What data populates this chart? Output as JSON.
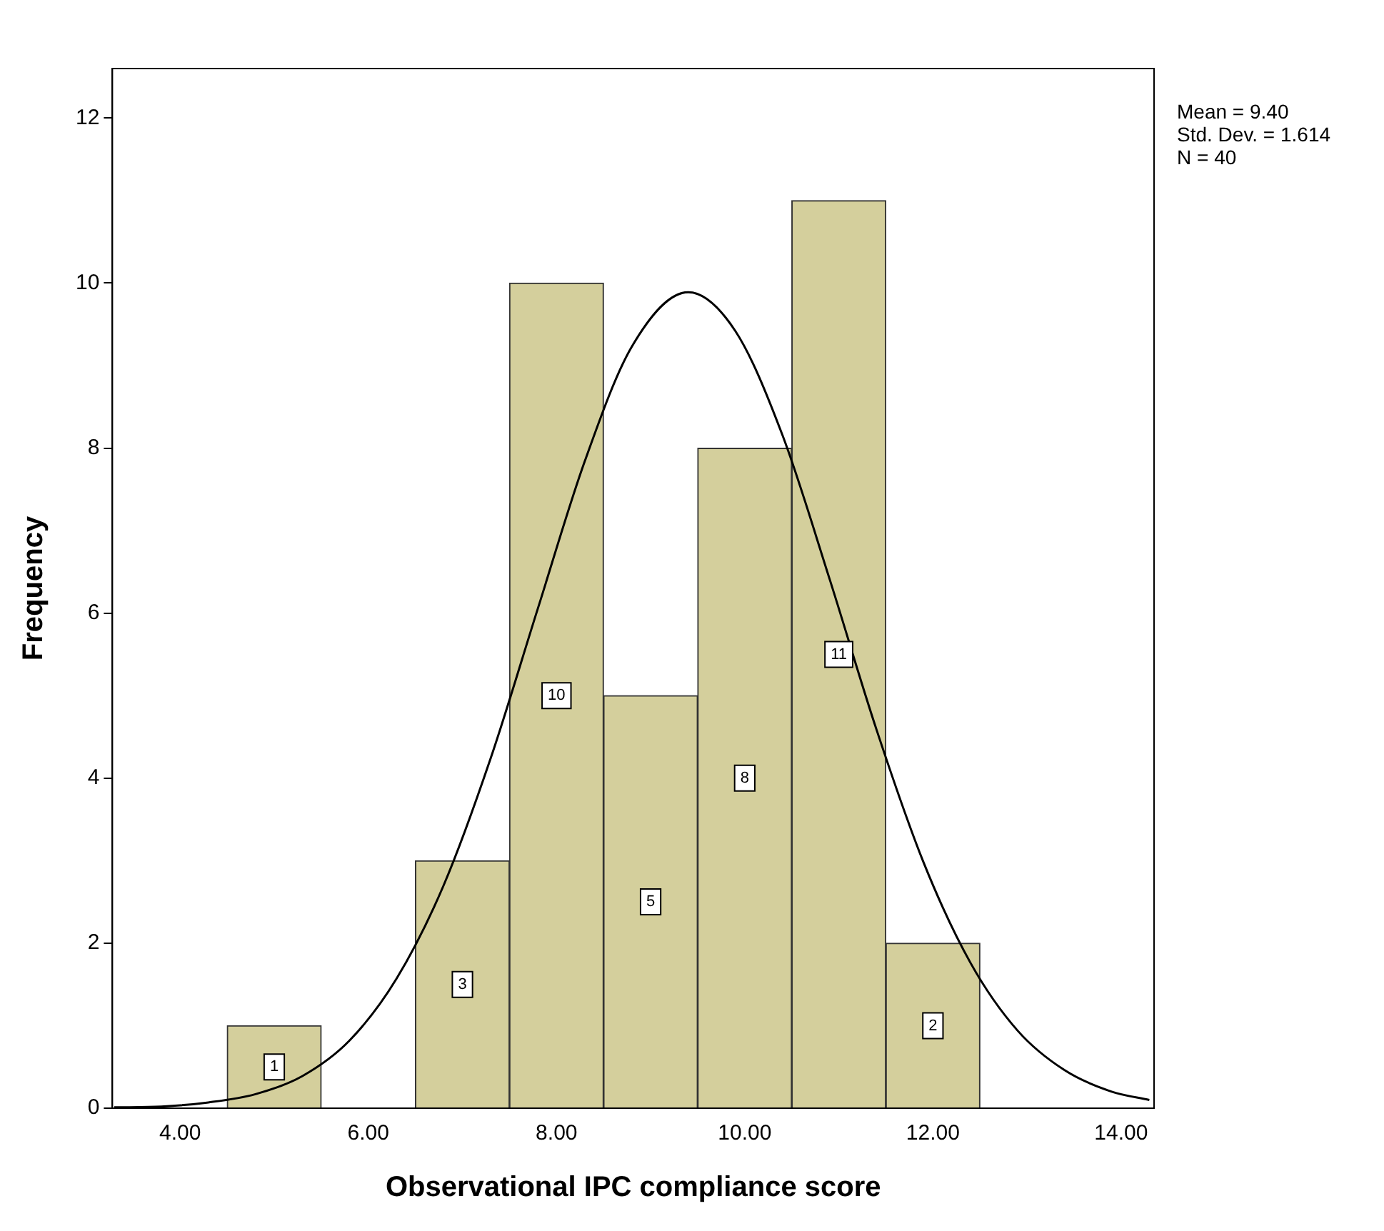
{
  "chart_data": {
    "type": "histogram",
    "xlabel": "Observational IPC compliance score",
    "ylabel": "Frequency",
    "bins": [
      4.5,
      5.5,
      6.5,
      7.5,
      8.5,
      9.5,
      10.5,
      11.5,
      12.5
    ],
    "values": [
      1,
      0,
      3,
      10,
      5,
      8,
      11,
      2
    ],
    "value_labels": [
      "1",
      null,
      "3",
      "10",
      "5",
      "8",
      "11",
      "2"
    ],
    "color": "#d4cf9c",
    "series": [
      {
        "type": "line",
        "color": "#000000",
        "x": [
          3.3,
          3.8,
          4.3,
          4.8,
          5.3,
          5.8,
          6.3,
          6.8,
          7.3,
          7.8,
          8.3,
          8.8,
          9.4,
          9.9,
          10.4,
          10.9,
          11.4,
          11.9,
          12.4,
          12.9,
          13.4,
          13.9,
          14.3
        ],
        "values": [
          0.01,
          0.02,
          0.07,
          0.17,
          0.39,
          0.82,
          1.57,
          2.7,
          4.24,
          6.05,
          7.84,
          9.23,
          9.89,
          9.42,
          8.16,
          6.42,
          4.59,
          2.98,
          1.76,
          0.94,
          0.46,
          0.2,
          0.1
        ]
      }
    ],
    "marker": "none",
    "xlim": [
      3.28,
      14.35
    ],
    "xticks": [
      {
        "value": 4,
        "label": "4.00"
      },
      {
        "value": 6,
        "label": "6.00"
      },
      {
        "value": 8,
        "label": "8.00"
      },
      {
        "value": 10,
        "label": "10.00"
      },
      {
        "value": 12,
        "label": "12.00"
      },
      {
        "value": 14,
        "label": "14.00"
      }
    ],
    "ylim": [
      0,
      12.6
    ],
    "yticks": [
      0,
      2,
      4,
      6,
      8,
      10,
      12
    ],
    "grid": false,
    "legend": false,
    "annotations": [
      "Mean = 9.40",
      "Std. Dev. = 1.614",
      "N = 40"
    ]
  }
}
